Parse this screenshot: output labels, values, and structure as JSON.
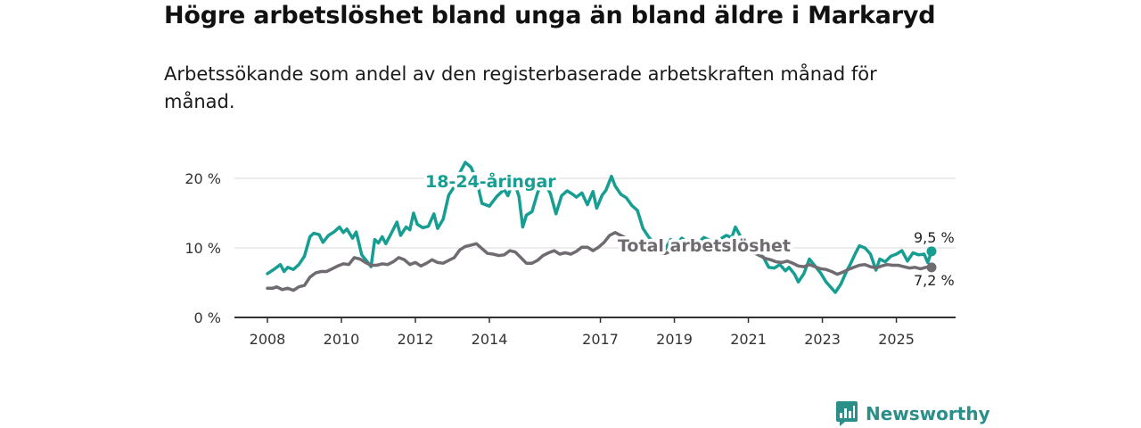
{
  "title": "Högre arbetslöshet bland unga än bland äldre i Markaryd",
  "subtitle": "Arbetssökande som andel av den registerbaserade arbetskraften månad för månad.",
  "brand": {
    "name": "Newsworthy",
    "icon": "bar-chart-icon"
  },
  "colors": {
    "youth": "#169e93",
    "total": "#706b70",
    "grid": "#d9d9d9",
    "axis": "#333333",
    "brand": "#2a8f89"
  },
  "chart_data": {
    "type": "line",
    "title": "Högre arbetslöshet bland unga än bland äldre i Markaryd",
    "xlabel": "",
    "ylabel": "",
    "xlim": [
      2008.0,
      2026.9
    ],
    "ylim": [
      0,
      20
    ],
    "grid": true,
    "y_ticks": [
      {
        "value": 0,
        "label": "0 %"
      },
      {
        "value": 10,
        "label": "10 %"
      },
      {
        "value": 20,
        "label": "20 %"
      }
    ],
    "x_ticks": [
      {
        "value": 2008,
        "label": "2008"
      },
      {
        "value": 2010,
        "label": "2010"
      },
      {
        "value": 2012,
        "label": "2012"
      },
      {
        "value": 2014,
        "label": "2014"
      },
      {
        "value": 2017,
        "label": "2017"
      },
      {
        "value": 2019,
        "label": "2019"
      },
      {
        "value": 2021,
        "label": "2021"
      },
      {
        "value": 2023,
        "label": "2023"
      },
      {
        "value": 2025,
        "label": "2025"
      }
    ],
    "series": [
      {
        "name": "18-24-åringar",
        "color": "#169e93",
        "end_label": "9,5 %",
        "points": [
          [
            2008.0,
            6.3
          ],
          [
            2008.2,
            7.0
          ],
          [
            2008.35,
            7.6
          ],
          [
            2008.45,
            6.6
          ],
          [
            2008.55,
            7.2
          ],
          [
            2008.7,
            6.9
          ],
          [
            2008.85,
            7.6
          ],
          [
            2009.0,
            8.8
          ],
          [
            2009.15,
            11.6
          ],
          [
            2009.25,
            12.1
          ],
          [
            2009.4,
            11.9
          ],
          [
            2009.5,
            10.8
          ],
          [
            2009.65,
            11.8
          ],
          [
            2009.8,
            12.3
          ],
          [
            2009.95,
            13.0
          ],
          [
            2010.05,
            12.2
          ],
          [
            2010.15,
            12.7
          ],
          [
            2010.3,
            11.4
          ],
          [
            2010.4,
            12.3
          ],
          [
            2010.55,
            9.0
          ],
          [
            2010.7,
            8.0
          ],
          [
            2010.8,
            7.3
          ],
          [
            2010.9,
            11.2
          ],
          [
            2011.0,
            10.7
          ],
          [
            2011.1,
            11.6
          ],
          [
            2011.2,
            10.6
          ],
          [
            2011.35,
            12.1
          ],
          [
            2011.5,
            13.7
          ],
          [
            2011.6,
            11.8
          ],
          [
            2011.75,
            13.0
          ],
          [
            2011.85,
            12.6
          ],
          [
            2011.95,
            15.0
          ],
          [
            2012.05,
            13.4
          ],
          [
            2012.2,
            12.9
          ],
          [
            2012.35,
            13.1
          ],
          [
            2012.5,
            14.9
          ],
          [
            2012.6,
            12.8
          ],
          [
            2012.75,
            14.1
          ],
          [
            2012.9,
            17.6
          ],
          [
            2013.05,
            18.8
          ],
          [
            2013.2,
            20.8
          ],
          [
            2013.35,
            22.3
          ],
          [
            2013.5,
            21.6
          ],
          [
            2013.65,
            19.8
          ],
          [
            2013.8,
            16.4
          ],
          [
            2014.0,
            16.0
          ],
          [
            2014.2,
            17.4
          ],
          [
            2014.4,
            18.4
          ],
          [
            2014.5,
            17.5
          ],
          [
            2014.65,
            19.8
          ],
          [
            2014.8,
            17.4
          ],
          [
            2014.9,
            13.0
          ],
          [
            2015.0,
            14.7
          ],
          [
            2015.15,
            15.2
          ],
          [
            2015.3,
            17.9
          ],
          [
            2015.4,
            19.2
          ],
          [
            2015.55,
            18.8
          ],
          [
            2015.65,
            17.8
          ],
          [
            2015.8,
            14.9
          ],
          [
            2015.95,
            17.5
          ],
          [
            2016.1,
            18.2
          ],
          [
            2016.25,
            17.7
          ],
          [
            2016.35,
            17.3
          ],
          [
            2016.5,
            17.9
          ],
          [
            2016.65,
            16.2
          ],
          [
            2016.8,
            18.1
          ],
          [
            2016.9,
            15.7
          ],
          [
            2017.05,
            17.6
          ],
          [
            2017.15,
            18.3
          ],
          [
            2017.3,
            20.3
          ],
          [
            2017.4,
            18.9
          ],
          [
            2017.55,
            17.7
          ],
          [
            2017.7,
            17.2
          ],
          [
            2017.85,
            16.1
          ],
          [
            2018.0,
            15.4
          ],
          [
            2018.15,
            12.8
          ],
          [
            2018.3,
            11.6
          ],
          [
            2018.45,
            10.7
          ],
          [
            2018.6,
            10.2
          ],
          [
            2018.75,
            9.8
          ],
          [
            2018.9,
            11.2
          ],
          [
            2019.0,
            10.3
          ],
          [
            2019.2,
            11.4
          ],
          [
            2019.35,
            10.8
          ],
          [
            2019.5,
            10.0
          ],
          [
            2019.65,
            10.8
          ],
          [
            2019.8,
            11.5
          ],
          [
            2019.95,
            11.1
          ],
          [
            2020.1,
            10.6
          ],
          [
            2020.25,
            11.3
          ],
          [
            2020.4,
            11.8
          ],
          [
            2020.55,
            11.5
          ],
          [
            2020.65,
            13.0
          ],
          [
            2020.8,
            11.5
          ],
          [
            2020.95,
            10.4
          ],
          [
            2021.1,
            9.4
          ],
          [
            2021.25,
            9.2
          ],
          [
            2021.4,
            8.7
          ],
          [
            2021.55,
            7.2
          ],
          [
            2021.7,
            7.1
          ],
          [
            2021.85,
            7.6
          ],
          [
            2022.0,
            6.7
          ],
          [
            2022.1,
            7.2
          ],
          [
            2022.25,
            6.2
          ],
          [
            2022.35,
            5.1
          ],
          [
            2022.5,
            6.3
          ],
          [
            2022.65,
            8.4
          ],
          [
            2022.8,
            7.4
          ],
          [
            2022.95,
            6.4
          ],
          [
            2023.1,
            5.1
          ],
          [
            2023.25,
            4.2
          ],
          [
            2023.35,
            3.6
          ],
          [
            2023.5,
            4.8
          ],
          [
            2023.65,
            6.6
          ],
          [
            2023.75,
            7.6
          ],
          [
            2023.9,
            9.3
          ],
          [
            2024.0,
            10.3
          ],
          [
            2024.15,
            10.0
          ],
          [
            2024.3,
            9.1
          ],
          [
            2024.45,
            6.8
          ],
          [
            2024.55,
            8.4
          ],
          [
            2024.7,
            8.0
          ],
          [
            2024.85,
            8.8
          ],
          [
            2025.0,
            9.1
          ],
          [
            2025.15,
            9.6
          ],
          [
            2025.3,
            8.1
          ],
          [
            2025.45,
            9.3
          ],
          [
            2025.6,
            9.0
          ],
          [
            2025.75,
            9.1
          ],
          [
            2025.85,
            7.9
          ],
          [
            2025.95,
            9.5
          ]
        ]
      },
      {
        "name": "Total arbetslöshet",
        "color": "#706b70",
        "end_label": "7,2 %",
        "points": [
          [
            2008.0,
            4.2
          ],
          [
            2008.15,
            4.2
          ],
          [
            2008.25,
            4.4
          ],
          [
            2008.4,
            4.0
          ],
          [
            2008.55,
            4.2
          ],
          [
            2008.7,
            3.9
          ],
          [
            2008.85,
            4.4
          ],
          [
            2009.0,
            4.6
          ],
          [
            2009.15,
            5.8
          ],
          [
            2009.3,
            6.4
          ],
          [
            2009.45,
            6.6
          ],
          [
            2009.6,
            6.6
          ],
          [
            2009.75,
            7.0
          ],
          [
            2009.9,
            7.4
          ],
          [
            2010.05,
            7.7
          ],
          [
            2010.2,
            7.6
          ],
          [
            2010.35,
            8.6
          ],
          [
            2010.5,
            8.4
          ],
          [
            2010.65,
            7.9
          ],
          [
            2010.8,
            7.5
          ],
          [
            2010.95,
            7.5
          ],
          [
            2011.1,
            7.7
          ],
          [
            2011.25,
            7.6
          ],
          [
            2011.4,
            8.0
          ],
          [
            2011.55,
            8.6
          ],
          [
            2011.7,
            8.3
          ],
          [
            2011.85,
            7.6
          ],
          [
            2012.0,
            7.9
          ],
          [
            2012.15,
            7.4
          ],
          [
            2012.3,
            7.8
          ],
          [
            2012.45,
            8.3
          ],
          [
            2012.6,
            7.9
          ],
          [
            2012.75,
            7.8
          ],
          [
            2012.9,
            8.2
          ],
          [
            2013.05,
            8.6
          ],
          [
            2013.2,
            9.7
          ],
          [
            2013.35,
            10.2
          ],
          [
            2013.5,
            10.4
          ],
          [
            2013.65,
            10.6
          ],
          [
            2013.8,
            9.9
          ],
          [
            2013.95,
            9.2
          ],
          [
            2014.1,
            9.1
          ],
          [
            2014.25,
            8.9
          ],
          [
            2014.4,
            9.0
          ],
          [
            2014.55,
            9.6
          ],
          [
            2014.7,
            9.4
          ],
          [
            2014.85,
            8.6
          ],
          [
            2015.0,
            7.8
          ],
          [
            2015.15,
            7.8
          ],
          [
            2015.3,
            8.2
          ],
          [
            2015.45,
            8.9
          ],
          [
            2015.6,
            9.3
          ],
          [
            2015.75,
            9.6
          ],
          [
            2015.9,
            9.1
          ],
          [
            2016.05,
            9.3
          ],
          [
            2016.2,
            9.1
          ],
          [
            2016.35,
            9.5
          ],
          [
            2016.5,
            10.1
          ],
          [
            2016.65,
            10.1
          ],
          [
            2016.8,
            9.6
          ],
          [
            2016.95,
            10.1
          ],
          [
            2017.1,
            10.8
          ],
          [
            2017.25,
            11.8
          ],
          [
            2017.4,
            12.2
          ],
          [
            2017.55,
            11.8
          ],
          [
            2017.7,
            11.4
          ],
          [
            2017.85,
            10.8
          ],
          [
            2018.0,
            10.4
          ],
          [
            2018.15,
            9.9
          ],
          [
            2018.3,
            9.6
          ],
          [
            2018.45,
            9.4
          ],
          [
            2018.6,
            9.3
          ],
          [
            2018.75,
            9.2
          ],
          [
            2018.9,
            9.5
          ],
          [
            2019.05,
            9.6
          ],
          [
            2019.2,
            9.8
          ],
          [
            2019.35,
            9.8
          ],
          [
            2019.5,
            10.0
          ],
          [
            2019.65,
            9.9
          ],
          [
            2019.8,
            10.1
          ],
          [
            2019.95,
            10.2
          ],
          [
            2020.1,
            10.3
          ],
          [
            2020.25,
            10.4
          ],
          [
            2020.4,
            10.4
          ],
          [
            2020.55,
            10.2
          ],
          [
            2020.7,
            10.0
          ],
          [
            2020.85,
            9.8
          ],
          [
            2021.0,
            9.6
          ],
          [
            2021.15,
            9.3
          ],
          [
            2021.3,
            8.9
          ],
          [
            2021.45,
            8.5
          ],
          [
            2021.6,
            8.3
          ],
          [
            2021.75,
            8.0
          ],
          [
            2021.9,
            7.9
          ],
          [
            2022.05,
            8.1
          ],
          [
            2022.2,
            7.8
          ],
          [
            2022.35,
            7.4
          ],
          [
            2022.5,
            7.3
          ],
          [
            2022.65,
            7.6
          ],
          [
            2022.8,
            7.3
          ],
          [
            2022.95,
            7.0
          ],
          [
            2023.1,
            6.9
          ],
          [
            2023.25,
            6.6
          ],
          [
            2023.4,
            6.2
          ],
          [
            2023.55,
            6.5
          ],
          [
            2023.7,
            6.9
          ],
          [
            2023.85,
            7.2
          ],
          [
            2024.0,
            7.5
          ],
          [
            2024.15,
            7.6
          ],
          [
            2024.3,
            7.3
          ],
          [
            2024.45,
            7.1
          ],
          [
            2024.6,
            7.4
          ],
          [
            2024.75,
            7.6
          ],
          [
            2024.9,
            7.5
          ],
          [
            2025.05,
            7.5
          ],
          [
            2025.2,
            7.3
          ],
          [
            2025.35,
            7.1
          ],
          [
            2025.5,
            7.2
          ],
          [
            2025.65,
            7.0
          ],
          [
            2025.8,
            7.2
          ],
          [
            2025.95,
            7.2
          ]
        ]
      }
    ]
  }
}
